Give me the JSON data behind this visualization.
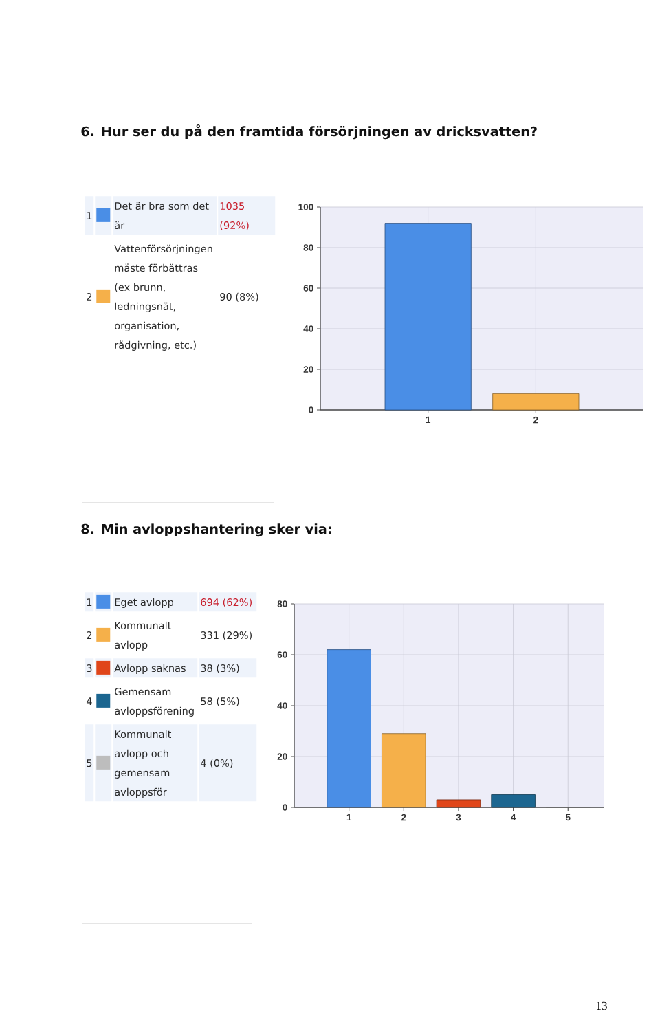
{
  "chart_data": [
    {
      "type": "bar",
      "title": "6. Hur ser du på den framtida försörjningen av dricksvatten?",
      "categories": [
        "1",
        "2"
      ],
      "series": [
        {
          "name": "Det är bra som det är",
          "color": "#4a8ee6",
          "values": [
            92,
            null
          ]
        },
        {
          "name": "Vattenförsörjningen måste förbättras (ex brunn, ledningsnät, organisation, rådgivning, etc.)",
          "color": "#f5b04a",
          "values": [
            null,
            8
          ]
        }
      ],
      "ylim": [
        0,
        100
      ],
      "yticks": [
        0,
        20,
        40,
        60,
        80,
        100
      ],
      "grid": true,
      "legend": "left",
      "annotations": [
        "1035 (92%)",
        "90 (8%)"
      ]
    },
    {
      "type": "bar",
      "title": "8. Min avloppshantering sker via:",
      "categories": [
        "1",
        "2",
        "3",
        "4",
        "5"
      ],
      "series": [
        {
          "name": "Eget avlopp",
          "color": "#4a8ee6",
          "values": [
            62,
            null,
            null,
            null,
            null
          ]
        },
        {
          "name": "Kommunalt avlopp",
          "color": "#f5b04a",
          "values": [
            null,
            29,
            null,
            null,
            null
          ]
        },
        {
          "name": "Avlopp saknas",
          "color": "#e0461a",
          "values": [
            null,
            null,
            3,
            null,
            null
          ]
        },
        {
          "name": "Gemensam avloppsförening",
          "color": "#1c6690",
          "values": [
            null,
            null,
            null,
            5,
            null
          ]
        },
        {
          "name": "Kommunalt avlopp och gemensam avloppsför",
          "color": "#bdbdbd",
          "values": [
            null,
            null,
            null,
            null,
            0
          ]
        }
      ],
      "ylim": [
        0,
        80
      ],
      "yticks": [
        0,
        20,
        40,
        60,
        80
      ],
      "grid": true,
      "legend": "left",
      "annotations": [
        "694 (62%)",
        "331 (29%)",
        "38 (3%)",
        "58 (5%)",
        "4 (0%)",
        "13"
      ]
    }
  ]
}
